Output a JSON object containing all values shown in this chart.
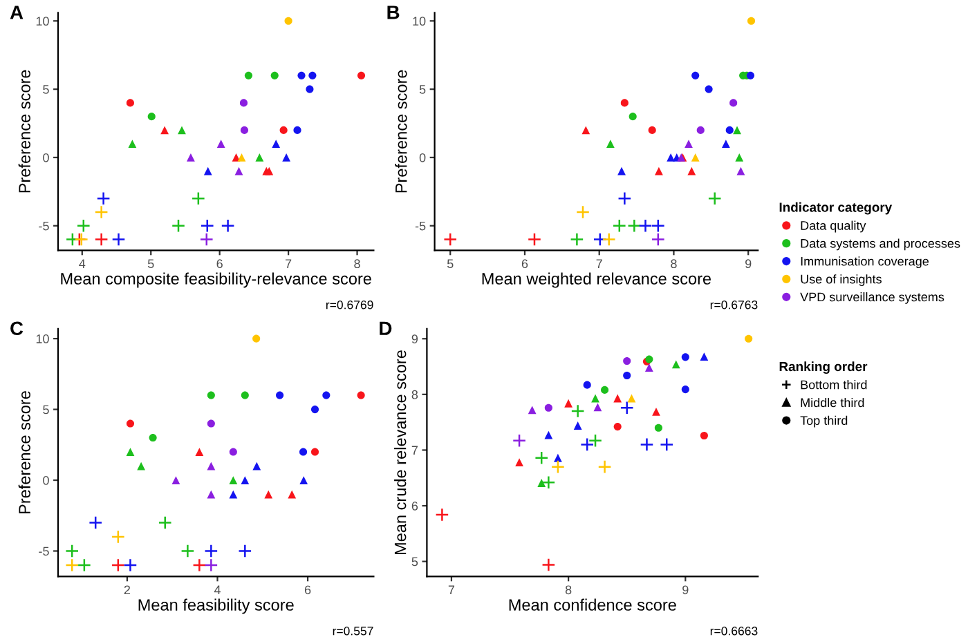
{
  "chart_data": [
    {
      "type": "scatter",
      "title": "A",
      "xlabel": "Mean composite feasibility-relevance score",
      "ylabel": "Preference score",
      "annotations": [
        "r=0.6769"
      ],
      "xlim": [
        3.65,
        8.24
      ],
      "ylim": [
        -6.8,
        10.6
      ],
      "xticks": [
        4,
        5,
        6,
        7,
        8
      ],
      "yticks": [
        -5,
        0,
        5,
        10
      ],
      "grid": false,
      "legend": false,
      "series": [
        {
          "color": "#f8151b",
          "marker": "circle",
          "x": [
            4.7,
            8.06,
            6.93
          ],
          "values": [
            4,
            6,
            2
          ]
        },
        {
          "color": "#f8151b",
          "marker": "triangle",
          "x": [
            5.2,
            6.24,
            6.68,
            6.72
          ],
          "values": [
            2,
            0,
            -1,
            -1
          ]
        },
        {
          "color": "#f8151b",
          "marker": "cross",
          "x": [
            3.96,
            4.28
          ],
          "values": [
            -6,
            -6
          ]
        },
        {
          "color": "#1dbf1d",
          "marker": "circle",
          "x": [
            6.42,
            6.8,
            5.01
          ],
          "values": [
            6,
            6,
            3
          ]
        },
        {
          "color": "#1dbf1d",
          "marker": "triangle",
          "x": [
            4.73,
            5.45,
            6.58
          ],
          "values": [
            1,
            2,
            0
          ]
        },
        {
          "color": "#1dbf1d",
          "marker": "cross",
          "x": [
            5.69,
            4.02,
            5.4,
            3.86
          ],
          "values": [
            -3,
            -5,
            -5,
            -6
          ]
        },
        {
          "color": "#1414f0",
          "marker": "circle",
          "x": [
            7.19,
            7.35,
            7.31,
            7.13
          ],
          "values": [
            6,
            6,
            5,
            2
          ]
        },
        {
          "color": "#1414f0",
          "marker": "triangle",
          "x": [
            6.82,
            6.97,
            5.83
          ],
          "values": [
            1,
            0,
            -1
          ]
        },
        {
          "color": "#1414f0",
          "marker": "cross",
          "x": [
            4.31,
            5.82,
            6.12,
            4.53
          ],
          "values": [
            -3,
            -5,
            -5,
            -6
          ]
        },
        {
          "color": "#ffc400",
          "marker": "circle",
          "x": [
            7.0
          ],
          "values": [
            10
          ]
        },
        {
          "color": "#ffc400",
          "marker": "triangle",
          "x": [
            6.32
          ],
          "values": [
            0
          ]
        },
        {
          "color": "#ffc400",
          "marker": "cross",
          "x": [
            4.28,
            3.99
          ],
          "values": [
            -4,
            -6
          ]
        },
        {
          "color": "#8a1fe0",
          "marker": "circle",
          "x": [
            6.35,
            6.36
          ],
          "values": [
            4,
            2
          ]
        },
        {
          "color": "#8a1fe0",
          "marker": "triangle",
          "x": [
            6.02,
            5.58,
            6.28
          ],
          "values": [
            1,
            0,
            -1
          ]
        },
        {
          "color": "#8a1fe0",
          "marker": "cross",
          "x": [
            5.81
          ],
          "values": [
            -6
          ]
        }
      ]
    },
    {
      "type": "scatter",
      "title": "B",
      "xlabel": "Mean weighted relevance score",
      "ylabel": "Preference score",
      "annotations": [
        "r=0.6763"
      ],
      "xlim": [
        4.79,
        9.13
      ],
      "ylim": [
        -6.8,
        10.6
      ],
      "xticks": [
        5,
        6,
        7,
        8,
        9
      ],
      "yticks": [
        -5,
        0,
        5,
        10
      ],
      "grid": false,
      "legend": "right",
      "legend_title": "Indicator category",
      "series": [
        {
          "name": "Data quality",
          "color": "#f8151b",
          "marker": "circle",
          "x": [
            7.34,
            7.71
          ],
          "values": [
            4,
            2
          ]
        },
        {
          "color": "#f8151b",
          "marker": "triangle",
          "x": [
            6.82,
            8.12,
            7.8,
            8.24
          ],
          "values": [
            2,
            0,
            -1,
            -1
          ]
        },
        {
          "color": "#f8151b",
          "marker": "cross",
          "x": [
            5.0,
            6.13
          ],
          "values": [
            -6,
            -6
          ]
        },
        {
          "name": "Data systems and processes",
          "color": "#1dbf1d",
          "marker": "circle",
          "x": [
            7.45,
            8.93,
            8.98
          ],
          "values": [
            3,
            6,
            6
          ]
        },
        {
          "color": "#1dbf1d",
          "marker": "triangle",
          "x": [
            7.15,
            8.85,
            8.88
          ],
          "values": [
            1,
            2,
            0
          ]
        },
        {
          "color": "#1dbf1d",
          "marker": "cross",
          "x": [
            8.55,
            7.27,
            7.47,
            6.7
          ],
          "values": [
            -3,
            -5,
            -5,
            -6
          ]
        },
        {
          "name": "Immunisation coverage",
          "color": "#1414f0",
          "marker": "circle",
          "x": [
            8.29,
            9.03,
            8.47,
            8.75
          ],
          "values": [
            6,
            6,
            5,
            2
          ]
        },
        {
          "color": "#1414f0",
          "marker": "triangle",
          "x": [
            8.7,
            7.96,
            8.04,
            7.3
          ],
          "values": [
            1,
            0,
            0,
            -1
          ]
        },
        {
          "color": "#1414f0",
          "marker": "cross",
          "x": [
            7.34,
            7.62,
            7.79,
            7.01
          ],
          "values": [
            -3,
            -5,
            -5,
            -6
          ]
        },
        {
          "name": "Use of insights",
          "color": "#ffc400",
          "marker": "circle",
          "x": [
            9.04
          ],
          "values": [
            10
          ]
        },
        {
          "color": "#ffc400",
          "marker": "triangle",
          "x": [
            8.29
          ],
          "values": [
            0
          ]
        },
        {
          "color": "#ffc400",
          "marker": "cross",
          "x": [
            6.78,
            7.13
          ],
          "values": [
            -4,
            -6
          ]
        },
        {
          "name": "VPD surveillance systems",
          "color": "#8a1fe0",
          "marker": "circle",
          "x": [
            8.8,
            8.36
          ],
          "values": [
            4,
            2
          ]
        },
        {
          "color": "#8a1fe0",
          "marker": "triangle",
          "x": [
            8.2,
            8.1,
            8.9
          ],
          "values": [
            1,
            0,
            -1
          ]
        },
        {
          "color": "#8a1fe0",
          "marker": "cross",
          "x": [
            7.79
          ],
          "values": [
            -6
          ]
        }
      ]
    },
    {
      "type": "scatter",
      "title": "C",
      "xlabel": "Mean feasibility score",
      "ylabel": "Preference score",
      "annotations": [
        "r=0.557"
      ],
      "xlim": [
        0.47,
        7.46
      ],
      "ylim": [
        -6.8,
        10.7
      ],
      "xticks": [
        2,
        4,
        6
      ],
      "yticks": [
        -5,
        0,
        5,
        10
      ],
      "grid": false,
      "legend": false,
      "series": [
        {
          "color": "#f8151b",
          "marker": "circle",
          "x": [
            7.18,
            2.07,
            6.16
          ],
          "values": [
            6,
            4,
            2
          ]
        },
        {
          "color": "#f8151b",
          "marker": "triangle",
          "x": [
            3.6,
            5.13,
            5.65
          ],
          "values": [
            2,
            -1,
            -1
          ]
        },
        {
          "color": "#f8151b",
          "marker": "cross",
          "x": [
            1.8,
            3.6
          ],
          "values": [
            -6,
            -6
          ]
        },
        {
          "color": "#1dbf1d",
          "marker": "circle",
          "x": [
            3.86,
            4.61,
            2.57
          ],
          "values": [
            6,
            6,
            3
          ]
        },
        {
          "color": "#1dbf1d",
          "marker": "triangle",
          "x": [
            2.07,
            2.31,
            4.35
          ],
          "values": [
            2,
            1,
            0
          ]
        },
        {
          "color": "#1dbf1d",
          "marker": "cross",
          "x": [
            2.84,
            0.78,
            3.34,
            1.05
          ],
          "values": [
            -3,
            -5,
            -5,
            -6
          ]
        },
        {
          "color": "#1414f0",
          "marker": "circle",
          "x": [
            5.38,
            6.41,
            6.16,
            5.9
          ],
          "values": [
            6,
            6,
            5,
            2
          ]
        },
        {
          "color": "#1414f0",
          "marker": "triangle",
          "x": [
            4.87,
            4.61,
            5.91,
            4.35
          ],
          "values": [
            1,
            0,
            0,
            -1
          ]
        },
        {
          "color": "#1414f0",
          "marker": "cross",
          "x": [
            1.3,
            3.86,
            4.61,
            2.07
          ],
          "values": [
            -3,
            -5,
            -5,
            -6
          ]
        },
        {
          "color": "#ffc400",
          "marker": "circle",
          "x": [
            4.86
          ],
          "values": [
            10
          ]
        },
        {
          "color": "#ffc400",
          "marker": "cross",
          "x": [
            1.8,
            0.78
          ],
          "values": [
            -4,
            -6
          ]
        },
        {
          "color": "#8a1fe0",
          "marker": "circle",
          "x": [
            3.86,
            4.35
          ],
          "values": [
            4,
            2
          ]
        },
        {
          "color": "#8a1fe0",
          "marker": "triangle",
          "x": [
            3.86,
            3.08,
            3.86
          ],
          "values": [
            1,
            0,
            -1
          ]
        },
        {
          "color": "#8a1fe0",
          "marker": "cross",
          "x": [
            3.86
          ],
          "values": [
            -6
          ]
        }
      ]
    },
    {
      "type": "scatter",
      "title": "D",
      "xlabel": "Mean confidence score",
      "ylabel": "Mean crude relevance score",
      "annotations": [
        "r=0.6663"
      ],
      "xlim": [
        6.79,
        9.62
      ],
      "ylim": [
        4.73,
        9.18
      ],
      "xticks": [
        7,
        8,
        9
      ],
      "yticks": [
        5,
        6,
        7,
        8,
        9
      ],
      "grid": false,
      "legend": false,
      "series": [
        {
          "color": "#f8151b",
          "marker": "circle",
          "x": [
            8.67,
            8.42,
            9.16
          ],
          "values": [
            8.59,
            7.42,
            7.26
          ]
        },
        {
          "color": "#f8151b",
          "marker": "triangle",
          "x": [
            8.0,
            8.42,
            8.75,
            7.58
          ],
          "values": [
            7.84,
            7.93,
            7.69,
            6.78
          ]
        },
        {
          "color": "#f8151b",
          "marker": "cross",
          "x": [
            6.92,
            7.83
          ],
          "values": [
            5.84,
            4.94
          ]
        },
        {
          "color": "#1dbf1d",
          "marker": "circle",
          "x": [
            8.69,
            8.31,
            8.77
          ],
          "values": [
            8.63,
            8.08,
            7.4
          ]
        },
        {
          "color": "#1dbf1d",
          "marker": "triangle",
          "x": [
            8.92,
            8.23,
            7.77
          ],
          "values": [
            8.54,
            7.93,
            6.41
          ]
        },
        {
          "color": "#1dbf1d",
          "marker": "cross",
          "x": [
            8.08,
            8.23,
            7.77,
            7.83
          ],
          "values": [
            7.7,
            7.17,
            6.86,
            6.42
          ]
        },
        {
          "color": "#1414f0",
          "marker": "circle",
          "x": [
            9.0,
            8.5,
            8.16,
            9.0
          ],
          "values": [
            8.67,
            8.34,
            8.17,
            8.09
          ]
        },
        {
          "color": "#1414f0",
          "marker": "triangle",
          "x": [
            9.16,
            8.08,
            7.83,
            7.91
          ],
          "values": [
            8.68,
            7.44,
            7.27,
            6.86
          ]
        },
        {
          "color": "#1414f0",
          "marker": "cross",
          "x": [
            8.5,
            8.16,
            8.67,
            8.84
          ],
          "values": [
            7.76,
            7.1,
            7.1,
            7.1
          ]
        },
        {
          "color": "#ffc400",
          "marker": "circle",
          "x": [
            9.54
          ],
          "values": [
            9.0
          ]
        },
        {
          "color": "#ffc400",
          "marker": "triangle",
          "x": [
            8.54
          ],
          "values": [
            7.93
          ]
        },
        {
          "color": "#ffc400",
          "marker": "cross",
          "x": [
            7.91,
            8.31
          ],
          "values": [
            6.7,
            6.7
          ]
        },
        {
          "color": "#8a1fe0",
          "marker": "circle",
          "x": [
            8.5,
            7.83
          ],
          "values": [
            8.6,
            7.76
          ]
        },
        {
          "color": "#8a1fe0",
          "marker": "triangle",
          "x": [
            8.69,
            7.69,
            8.25
          ],
          "values": [
            8.48,
            7.72,
            7.77
          ]
        },
        {
          "color": "#8a1fe0",
          "marker": "cross",
          "x": [
            7.58
          ],
          "values": [
            7.17
          ]
        }
      ]
    },
    {
      "type": "other",
      "legend": "right",
      "legend_title": "Ranking order",
      "series": [
        {
          "name": "Bottom third",
          "color": "#000000",
          "marker": "cross"
        },
        {
          "name": "Middle third",
          "color": "#000000",
          "marker": "triangle"
        },
        {
          "name": "Top third",
          "color": "#000000",
          "marker": "circle"
        }
      ]
    }
  ]
}
